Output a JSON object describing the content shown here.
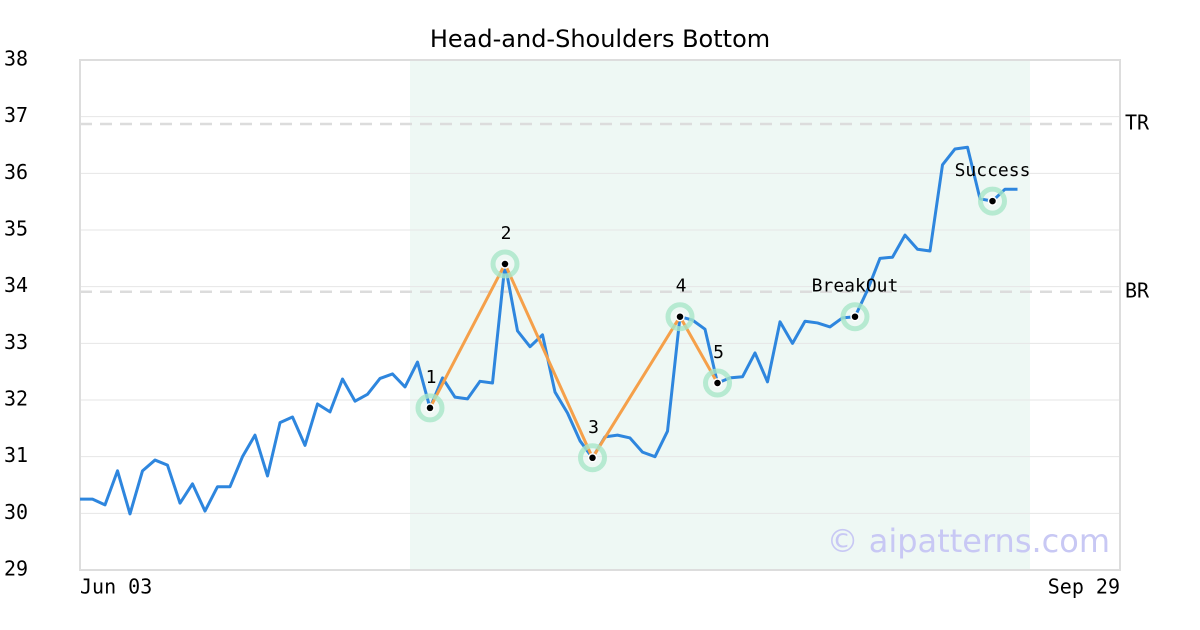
{
  "chart_data": {
    "type": "line",
    "title": "Head-and-Shoulders Bottom",
    "values": [
      30.25,
      30.25,
      30.15,
      30.75,
      29.99,
      30.75,
      30.94,
      30.85,
      30.18,
      30.52,
      30.04,
      30.47,
      30.47,
      31.0,
      31.38,
      30.66,
      31.6,
      31.7,
      31.2,
      31.93,
      31.79,
      32.37,
      31.98,
      32.1,
      32.38,
      32.46,
      32.23,
      32.67,
      31.86,
      32.39,
      32.05,
      32.02,
      32.33,
      32.3,
      34.4,
      33.22,
      32.94,
      33.15,
      32.14,
      31.77,
      31.28,
      30.98,
      31.35,
      31.38,
      31.33,
      31.08,
      31.0,
      31.45,
      33.47,
      33.41,
      33.25,
      32.3,
      32.39,
      32.41,
      32.83,
      32.32,
      33.38,
      33.0,
      33.39,
      33.36,
      33.29,
      33.45,
      33.47,
      33.94,
      34.5,
      34.52,
      34.91,
      34.66,
      34.63,
      36.15,
      36.43,
      36.46,
      35.55,
      35.51,
      35.72,
      35.72
    ],
    "color": "#2e86de",
    "xlim": [
      0,
      83.2
    ],
    "xticks": [
      {
        "value": 0,
        "label": "Jun 03"
      },
      {
        "value": 83.2,
        "label": "Sep 29"
      }
    ],
    "ylim": [
      29,
      38
    ],
    "yticks": [
      29,
      30,
      31,
      32,
      33,
      34,
      35,
      36,
      37,
      38
    ],
    "grid": true,
    "pattern_range": [
      26.4,
      76
    ],
    "levels": [
      {
        "label": "TR",
        "value": 36.87
      },
      {
        "label": "BR",
        "value": 33.91
      }
    ],
    "points": [
      {
        "text": "1",
        "x": 28,
        "y": 31.86
      },
      {
        "text": "2",
        "x": 34,
        "y": 34.4
      },
      {
        "text": "3",
        "x": 41,
        "y": 30.98
      },
      {
        "text": "4",
        "x": 48,
        "y": 33.47
      },
      {
        "text": "5",
        "x": 51,
        "y": 32.3
      },
      {
        "text": "BreakOut",
        "x": 62,
        "y": 33.47
      },
      {
        "text": "Success",
        "x": 73,
        "y": 35.51
      }
    ],
    "pattern_line_color": "#f5a04a",
    "watermark": "© aipatterns.com"
  }
}
